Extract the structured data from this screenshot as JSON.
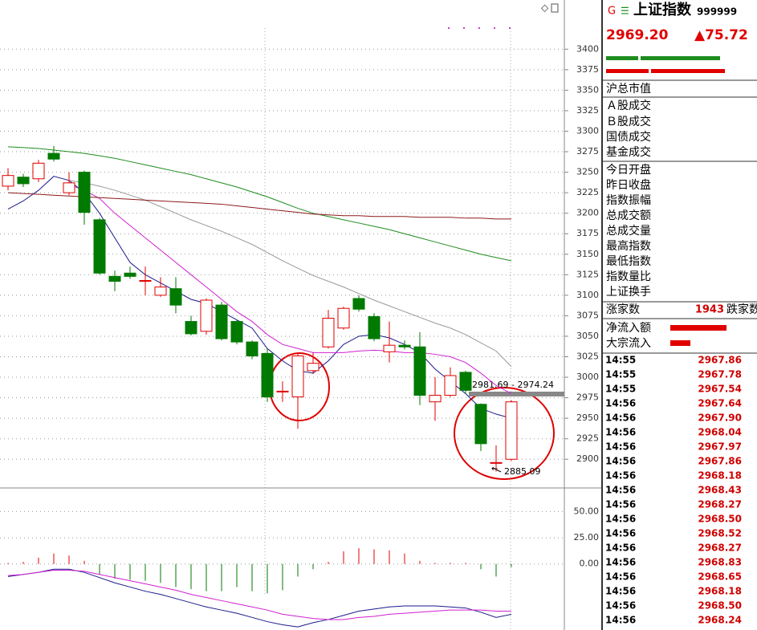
{
  "chart_data": [
    {
      "type": "candlestick",
      "open": [
        3233,
        3244,
        3242,
        3273,
        3225,
        3250,
        3192,
        3123,
        3127,
        3117,
        3100,
        3108,
        3068,
        3056,
        3088,
        3068,
        3043,
        3029,
        2982,
        2976,
        3008,
        3037,
        3060,
        3096,
        3074,
        3031,
        3039,
        3037,
        2970,
        2978,
        3006,
        2967,
        2895,
        2900
      ],
      "high": [
        3255,
        3248,
        3265,
        3282,
        3250,
        3252,
        3194,
        3130,
        3135,
        3135,
        3122,
        3122,
        3075,
        3096,
        3092,
        3070,
        3045,
        3035,
        2995,
        3030,
        3030,
        3082,
        3086,
        3100,
        3078,
        3068,
        3045,
        3055,
        3000,
        3012,
        3008,
        2968,
        2917,
        2972
      ],
      "low": [
        3228,
        3232,
        3238,
        3263,
        3222,
        3186,
        3125,
        3105,
        3120,
        3100,
        3098,
        3078,
        3051,
        3052,
        3045,
        3040,
        3022,
        2970,
        2970,
        2937,
        3004,
        3035,
        3058,
        3080,
        3044,
        3018,
        3034,
        2966,
        2947,
        2976,
        2980,
        2910,
        2885,
        2898
      ],
      "close": [
        3246,
        3236,
        3261,
        3266,
        3237,
        3201,
        3127,
        3117,
        3123,
        3118,
        3110,
        3088,
        3053,
        3094,
        3047,
        3043,
        3026,
        2976,
        2983,
        3026,
        3017,
        3072,
        3084,
        3083,
        3047,
        3039,
        3037,
        2978,
        2978,
        3002,
        2984,
        2919,
        2896,
        2970
      ],
      "up_color": "#e00000",
      "down_color": "#007a00",
      "lines": [
        {
          "color": "#1a1a8c",
          "values": [
            3205,
            3215,
            3228,
            3245,
            3240,
            3225,
            3200,
            3170,
            3140,
            3125,
            3115,
            3105,
            3095,
            3090,
            3080,
            3070,
            3060,
            3035,
            3020,
            3008,
            3005,
            3020,
            3040,
            3050,
            3052,
            3048,
            3040,
            3030,
            3010,
            2995,
            2980,
            2962,
            2955,
            2950
          ]
        },
        {
          "color": "#d020d0",
          "values": [
            null,
            null,
            null,
            null,
            3235,
            3228,
            3218,
            3200,
            3185,
            3170,
            3155,
            3140,
            3125,
            3110,
            3095,
            3080,
            3068,
            3052,
            3040,
            3035,
            3030,
            3030,
            3030,
            3032,
            3033,
            3032,
            3030,
            3030,
            3028,
            3025,
            3018,
            3005,
            2990,
            2980
          ]
        },
        {
          "color": "#999999",
          "values": [
            null,
            null,
            null,
            null,
            3240,
            3237,
            3233,
            3228,
            3222,
            3216,
            3208,
            3200,
            3192,
            3185,
            3178,
            3170,
            3162,
            3152,
            3142,
            3133,
            3124,
            3117,
            3110,
            3102,
            3094,
            3087,
            3080,
            3073,
            3066,
            3060,
            3052,
            3042,
            3032,
            3013
          ]
        },
        {
          "color": "#1e8c1e",
          "values": [
            3281,
            3280,
            3279,
            3277,
            3275,
            3273,
            3270,
            3267,
            3263,
            3259,
            3255,
            3251,
            3247,
            3242,
            3237,
            3232,
            3226,
            3220,
            3213,
            3206,
            3200,
            3196,
            3192,
            3188,
            3184,
            3180,
            3175,
            3170,
            3165,
            3160,
            3155,
            3150,
            3146,
            3142
          ]
        },
        {
          "color": "#8b1a1a",
          "values": [
            3225,
            3224,
            3223,
            3222,
            3221,
            3220,
            3219,
            3218,
            3217,
            3216,
            3215,
            3214,
            3213,
            3212,
            3211,
            3209,
            3207,
            3205,
            3203,
            3201,
            3199,
            3198,
            3197,
            3197,
            3196,
            3196,
            3196,
            3195,
            3195,
            3195,
            3194,
            3194,
            3193,
            3193
          ]
        }
      ],
      "ylim": [
        2865,
        3460
      ],
      "yticks": [
        2900,
        2925,
        2950,
        2975,
        3000,
        3025,
        3050,
        3075,
        3100,
        3125,
        3150,
        3175,
        3200,
        3225,
        3250,
        3275,
        3300,
        3325,
        3350,
        3375,
        3400
      ],
      "grid": true,
      "annotations": [
        "2981.69 - 2974.24",
        "2885.09"
      ]
    },
    {
      "type": "macd",
      "hist": [
        1,
        2,
        6,
        10,
        8,
        3,
        -10,
        -14,
        -15,
        -16,
        -18,
        -22,
        -24,
        -26,
        -26,
        -22,
        -26,
        -28,
        -25,
        -12,
        -5,
        2,
        12,
        15,
        14,
        13,
        10,
        3,
        1,
        1,
        1,
        -5,
        -12,
        -3
      ],
      "dif": [
        -12,
        -10,
        -8,
        -5,
        -5,
        -8,
        -13,
        -18,
        -22,
        -26,
        -29,
        -33,
        -37,
        -41,
        -44,
        -47,
        -51,
        -55,
        -58,
        -60,
        -56,
        -53,
        -49,
        -45,
        -43,
        -41,
        -40,
        -40,
        -40,
        -41,
        -42,
        -46,
        -51,
        -48
      ],
      "dea": [
        -11,
        -10,
        -8,
        -6,
        -6,
        -7,
        -10,
        -13,
        -16,
        -19,
        -22,
        -25,
        -29,
        -32,
        -35,
        -38,
        -41,
        -44,
        -48,
        -50,
        -52,
        -53,
        -53,
        -51,
        -50,
        -48,
        -47,
        -46,
        -45,
        -44,
        -44,
        -44,
        -45,
        -45
      ],
      "dif_color": "#1a1a8c",
      "dea_color": "#d020d0",
      "up_color": "#e00000",
      "down_color": "#007a00",
      "ylim": [
        -63,
        71
      ],
      "yticks": [
        {
          "value": 0,
          "label": "0.00"
        },
        {
          "value": 25,
          "label": "25.00"
        },
        {
          "value": 50,
          "label": "50.00"
        }
      ]
    }
  ],
  "quote": {
    "marker": "G",
    "menu": "☰",
    "name": "上证指数",
    "code": "999999",
    "price": "2969.20",
    "change": "▲75.72",
    "labels": [
      "沪总市值",
      "Ａ股成交",
      "Ｂ股成交",
      "国债成交",
      "基金成交",
      "今日开盘",
      "昨日收盘",
      "指数振幅",
      "总成交额",
      "总成交量",
      "最高指数",
      "最低指数",
      "指数量比",
      "上证换手"
    ],
    "advancers_label": "涨家数",
    "advancers": "1943",
    "decliners_label": "跌家数",
    "flows": [
      "净流入额",
      "大宗流入"
    ],
    "ticks": {
      "times": [
        "14:55",
        "14:55",
        "14:55",
        "14:56",
        "14:56",
        "14:56",
        "14:56",
        "14:56",
        "14:56",
        "14:56",
        "14:56",
        "14:56",
        "14:56",
        "14:56",
        "14:56",
        "14:56",
        "14:56",
        "14:56",
        "14:56"
      ],
      "prices": [
        "2967.86",
        "2967.78",
        "2967.54",
        "2967.64",
        "2967.90",
        "2968.04",
        "2967.97",
        "2967.86",
        "2968.18",
        "2968.43",
        "2968.27",
        "2968.50",
        "2968.52",
        "2968.27",
        "2968.83",
        "2968.65",
        "2968.18",
        "2968.50",
        "2968.24"
      ]
    }
  }
}
